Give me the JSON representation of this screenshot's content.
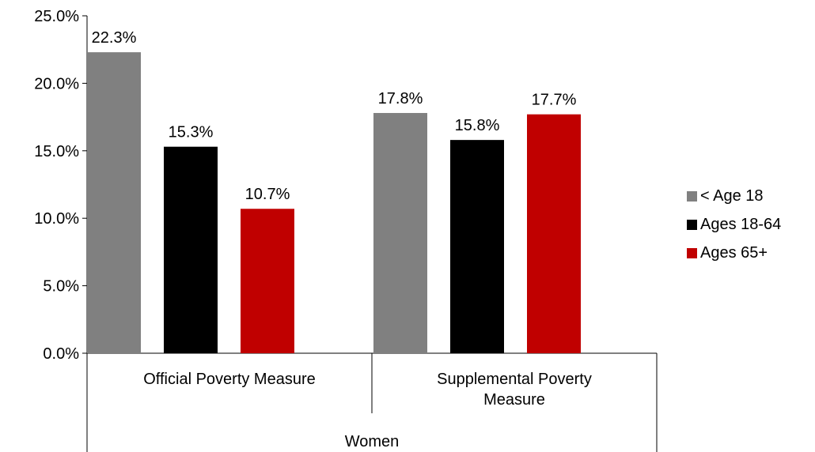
{
  "chart_data": {
    "type": "bar",
    "title": "",
    "ylim": [
      0,
      25
    ],
    "yticks": [
      "0.0%",
      "5.0%",
      "10.0%",
      "15.0%",
      "20.0%",
      "25.0%"
    ],
    "ytick_values": [
      0,
      5,
      10,
      15,
      20,
      25
    ],
    "categories": [
      "Official Poverty Measure",
      "Supplemental Poverty Measure"
    ],
    "category_lines": [
      [
        "Official Poverty Measure"
      ],
      [
        "Supplemental Poverty",
        "Measure"
      ]
    ],
    "group_label": "Women",
    "series": [
      {
        "name": "< Age 18",
        "color": "#808080",
        "values": [
          22.3,
          17.8
        ],
        "labels": [
          "22.3%",
          "17.8%"
        ]
      },
      {
        "name": "Ages 18-64",
        "color": "#000000",
        "values": [
          15.3,
          15.8
        ],
        "labels": [
          "15.3%",
          "15.8%"
        ]
      },
      {
        "name": "Ages 65+",
        "color": "#c00000",
        "values": [
          10.7,
          17.7
        ],
        "labels": [
          "10.7%",
          "17.7%"
        ]
      }
    ],
    "legend_position": "right",
    "grid": false
  }
}
